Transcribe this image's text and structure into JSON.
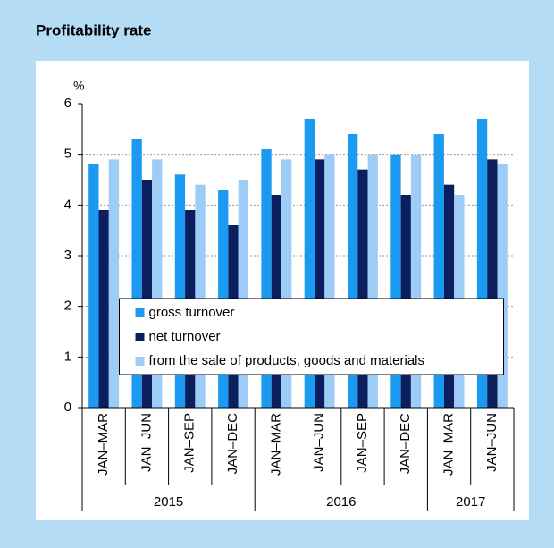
{
  "chart_data": {
    "type": "bar",
    "title": "Profitability rate",
    "y_label": "%",
    "groups": [
      {
        "name": "2015",
        "categories": [
          "JAN–MAR",
          "JAN–JUN",
          "JAN–SEP",
          "JAN–DEC"
        ]
      },
      {
        "name": "2016",
        "categories": [
          "JAN–MAR",
          "JAN–JUN",
          "JAN–SEP",
          "JAN–DEC"
        ]
      },
      {
        "name": "2017",
        "categories": [
          "JAN–MAR",
          "JAN–JUN"
        ]
      }
    ],
    "series": [
      {
        "name": "gross turnover",
        "color": "#1a9af0",
        "values": [
          4.8,
          5.3,
          4.6,
          4.3,
          5.1,
          5.7,
          5.4,
          5.0,
          5.4,
          5.7
        ]
      },
      {
        "name": "net turnover",
        "color": "#0b1f5e",
        "values": [
          3.9,
          4.5,
          3.9,
          3.6,
          4.2,
          4.9,
          4.7,
          4.2,
          4.4,
          4.9
        ]
      },
      {
        "name": "from the sale of products, goods and materials",
        "color": "#9dcdf7",
        "values": [
          4.9,
          4.9,
          4.4,
          4.5,
          4.9,
          5.0,
          5.0,
          5.0,
          4.2,
          4.8
        ]
      }
    ],
    "ylim": [
      0,
      6
    ],
    "yticks": [
      0,
      1,
      2,
      3,
      4,
      5,
      6
    ],
    "grid": true,
    "legend": "lower center"
  }
}
